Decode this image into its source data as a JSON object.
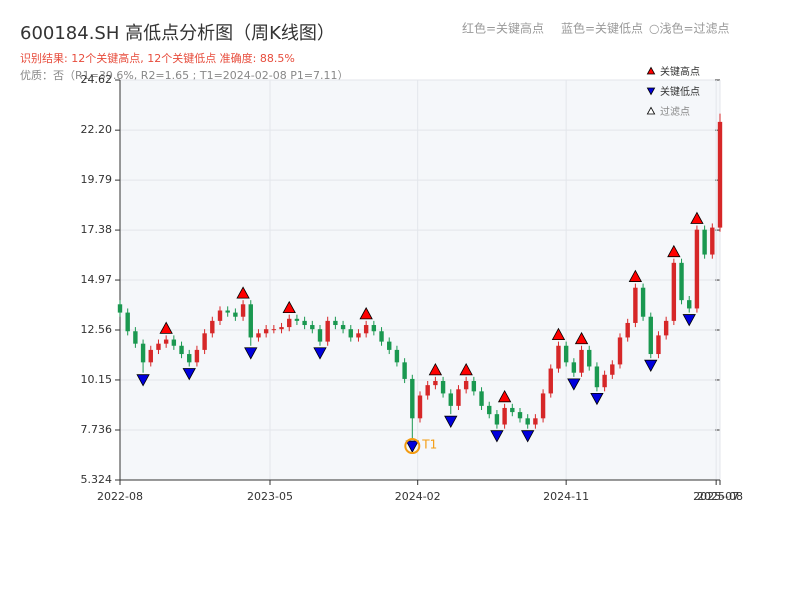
{
  "chart_data": {
    "type": "candlestick",
    "title": "600184.SH 高低点分析图（周K线图）",
    "subtitle": "识别结果: 12个关键高点, 12个关键低点  准确度: 88.5%",
    "quality": "优质：否（R1=39.6%, R2=1.65 ; T1=2024-02-08 P1=7.11）",
    "legend_notes": [
      "红色=关键高点",
      "蓝色=关键低点",
      "○浅色=过滤点"
    ],
    "up_color": "#d62728",
    "down_color": "#1a9850",
    "open": [
      13.8,
      13.4,
      12.5,
      11.9,
      11.0,
      11.6,
      11.9,
      12.1,
      11.8,
      11.4,
      11.0,
      11.6,
      12.4,
      13.0,
      13.5,
      13.4,
      13.2,
      13.8,
      12.2,
      12.4,
      12.6,
      12.6,
      12.7,
      13.1,
      13.0,
      12.8,
      12.6,
      12.0,
      13.0,
      12.8,
      12.6,
      12.2,
      12.4,
      12.8,
      12.5,
      12.0,
      11.6,
      11.0,
      10.2,
      8.3,
      9.4,
      9.9,
      10.1,
      9.5,
      8.9,
      9.7,
      10.1,
      9.6,
      8.9,
      8.5,
      8.0,
      8.8,
      8.6,
      8.3,
      8.0,
      8.3,
      9.5,
      10.7,
      11.8,
      11.0,
      10.5,
      11.6,
      10.8,
      9.8,
      10.4,
      10.9,
      12.2,
      12.9,
      14.6,
      13.2,
      11.4,
      12.3,
      13.0,
      15.8,
      14.0,
      13.6,
      17.4,
      16.2,
      17.5
    ],
    "high": [
      14.0,
      13.6,
      12.7,
      12.1,
      11.8,
      12.1,
      12.3,
      12.3,
      12.0,
      11.6,
      11.8,
      12.6,
      13.2,
      13.7,
      13.7,
      13.6,
      14.0,
      14.0,
      12.6,
      12.8,
      12.8,
      12.9,
      13.3,
      13.3,
      13.2,
      13.0,
      12.8,
      13.2,
      13.2,
      13.0,
      12.8,
      12.6,
      13.0,
      13.0,
      12.7,
      12.2,
      11.8,
      11.2,
      10.4,
      9.6,
      10.1,
      10.3,
      10.3,
      9.7,
      9.9,
      10.3,
      10.3,
      9.8,
      9.1,
      8.7,
      9.0,
      9.0,
      8.8,
      8.5,
      8.5,
      9.7,
      10.9,
      12.0,
      12.0,
      11.2,
      11.8,
      11.8,
      11.0,
      10.6,
      11.1,
      12.4,
      13.1,
      14.8,
      14.8,
      13.4,
      12.5,
      13.2,
      16.0,
      16.0,
      14.2,
      17.6,
      17.6,
      17.7,
      23.0
    ],
    "low": [
      13.2,
      12.3,
      11.7,
      10.5,
      10.8,
      11.4,
      11.7,
      11.6,
      11.2,
      10.8,
      10.8,
      11.4,
      12.2,
      12.8,
      13.2,
      13.0,
      13.0,
      11.8,
      12.0,
      12.2,
      12.4,
      12.4,
      12.5,
      12.8,
      12.6,
      12.4,
      11.8,
      11.8,
      12.6,
      12.4,
      12.0,
      12.0,
      12.2,
      12.3,
      11.8,
      11.4,
      10.8,
      10.0,
      7.3,
      8.1,
      9.2,
      9.7,
      9.3,
      8.5,
      8.7,
      9.5,
      9.4,
      8.7,
      8.3,
      7.8,
      7.8,
      8.4,
      8.1,
      7.8,
      7.8,
      8.1,
      9.3,
      10.5,
      10.8,
      10.3,
      10.3,
      10.6,
      9.6,
      9.6,
      10.2,
      10.7,
      12.0,
      12.7,
      13.0,
      11.2,
      11.2,
      12.1,
      12.8,
      13.8,
      13.4,
      13.4,
      16.0,
      16.0,
      17.3
    ],
    "close": [
      13.4,
      12.5,
      11.9,
      11.0,
      11.6,
      11.9,
      12.1,
      11.8,
      11.4,
      11.0,
      11.6,
      12.4,
      13.0,
      13.5,
      13.4,
      13.2,
      13.8,
      12.2,
      12.4,
      12.6,
      12.6,
      12.7,
      13.1,
      13.0,
      12.8,
      12.6,
      12.0,
      13.0,
      12.8,
      12.6,
      12.2,
      12.4,
      12.8,
      12.5,
      12.0,
      11.6,
      11.0,
      10.2,
      8.3,
      9.4,
      9.9,
      10.1,
      9.5,
      8.9,
      9.7,
      10.1,
      9.6,
      8.9,
      8.5,
      8.0,
      8.8,
      8.6,
      8.3,
      8.0,
      8.3,
      9.5,
      10.7,
      11.8,
      11.0,
      10.5,
      11.6,
      10.8,
      9.8,
      10.4,
      10.9,
      12.2,
      12.9,
      14.6,
      13.2,
      11.4,
      12.3,
      13.0,
      15.8,
      14.0,
      13.6,
      17.4,
      16.2,
      17.5,
      22.6
    ],
    "series": [
      {
        "name": "关键高点",
        "color": "#ff0000",
        "marker": "up",
        "x": [
          6,
          16,
          22,
          32,
          41,
          45,
          50,
          57,
          60,
          67,
          72,
          75
        ],
        "values": [
          12.3,
          14.0,
          13.3,
          13.0,
          10.3,
          10.3,
          9.0,
          12.0,
          11.8,
          14.8,
          16.0,
          17.6
        ]
      },
      {
        "name": "关键低点",
        "color": "#0000dd",
        "marker": "down",
        "x": [
          3,
          9,
          17,
          26,
          38,
          43,
          49,
          53,
          59,
          62,
          69,
          74
        ],
        "values": [
          10.5,
          10.8,
          11.8,
          11.8,
          7.3,
          8.5,
          7.8,
          7.8,
          10.3,
          9.6,
          11.2,
          13.4
        ]
      },
      {
        "name": "过滤点",
        "color": "#ffffff",
        "marker": "up",
        "x": [],
        "values": []
      }
    ],
    "annotation": {
      "text": "T1",
      "x": 38,
      "y": 7.3,
      "color": "#f39c12"
    },
    "xlim": [
      0,
      78
    ],
    "xticks": [
      {
        "value": 0,
        "label": "2022-08"
      },
      {
        "value": 19.5,
        "label": "2023-05"
      },
      {
        "value": 38.7,
        "label": "2024-02"
      },
      {
        "value": 58,
        "label": "2024-11"
      },
      {
        "value": 77.5,
        "label": "2025-07"
      },
      {
        "value": 78,
        "label": "2025-08"
      }
    ],
    "ylim": [
      5.324,
      24.62
    ],
    "yticks": [
      5.324,
      7.736,
      10.15,
      12.56,
      14.97,
      17.38,
      19.79,
      {
        "value": 22.2,
        "label": "22.20"
      },
      24.62
    ],
    "grid": true
  }
}
